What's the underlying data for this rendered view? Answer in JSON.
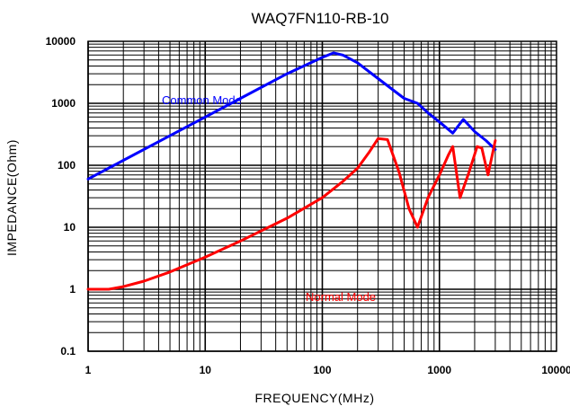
{
  "chart_data": {
    "type": "line",
    "title": "WAQ7FN110-RB-10",
    "xlabel": "FREQUENCY(MHz)",
    "ylabel": "IMPEDANCE(Ohm)",
    "xscale": "log",
    "yscale": "log",
    "xlim": [
      1,
      10000
    ],
    "ylim": [
      0.1,
      10000
    ],
    "grid": true,
    "x_ticks": [
      {
        "value": 1,
        "label": "1"
      },
      {
        "value": 10,
        "label": "10"
      },
      {
        "value": 100,
        "label": "100"
      },
      {
        "value": 1000,
        "label": "1000"
      },
      {
        "value": 10000,
        "label": "10000"
      }
    ],
    "y_ticks": [
      {
        "value": 0.1,
        "label": "0.1"
      },
      {
        "value": 1,
        "label": "1"
      },
      {
        "value": 10,
        "label": "10"
      },
      {
        "value": 100,
        "label": "100"
      },
      {
        "value": 1000,
        "label": "1000"
      },
      {
        "value": 10000,
        "label": "10000"
      }
    ],
    "series": [
      {
        "name": "Common Mode",
        "color": "#0000ff",
        "x": [
          1,
          2,
          5,
          10,
          20,
          50,
          100,
          125,
          150,
          200,
          300,
          500,
          650,
          800,
          1000,
          1300,
          1600,
          2000,
          2500,
          3000
        ],
        "y": [
          60,
          120,
          300,
          600,
          1200,
          3000,
          5500,
          6500,
          6000,
          4500,
          2500,
          1200,
          1000,
          700,
          500,
          330,
          550,
          350,
          250,
          180
        ]
      },
      {
        "name": "Normal Mode",
        "color": "#ff0000",
        "x": [
          1,
          1.5,
          2,
          3,
          5,
          10,
          20,
          50,
          100,
          150,
          200,
          250,
          300,
          360,
          450,
          550,
          650,
          800,
          1000,
          1200,
          1300,
          1500,
          1800,
          2100,
          2300,
          2600,
          3000
        ],
        "y": [
          1,
          1,
          1.1,
          1.35,
          1.9,
          3.3,
          6,
          14,
          30,
          55,
          90,
          160,
          270,
          260,
          80,
          20,
          10,
          30,
          70,
          150,
          200,
          30,
          80,
          200,
          190,
          70,
          250
        ]
      }
    ]
  }
}
